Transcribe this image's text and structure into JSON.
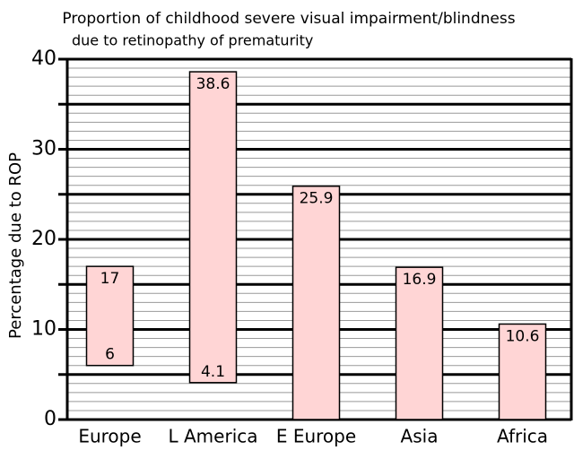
{
  "chart_data": {
    "type": "range-bar",
    "title": "Proportion of childhood severe visual impairment/blindness",
    "subtitle": "due to retinopathy of prematurity",
    "y_label": "Percentage due to ROP",
    "categories": [
      "Europe",
      "L America",
      "E Europe",
      "Asia",
      "Africa"
    ],
    "values": [
      17,
      38.6,
      25.9,
      16.9,
      10.6
    ],
    "low": [
      6,
      4.1,
      null,
      null,
      null
    ],
    "color": "#ffd5d5",
    "ylim": [
      0,
      40
    ],
    "yticks": [
      0,
      10,
      20,
      30,
      40
    ],
    "major_grid": [
      5,
      15,
      25,
      35
    ],
    "minor_grid": [
      1,
      2,
      3,
      4,
      6,
      7,
      8,
      9,
      11,
      12,
      13,
      14,
      16,
      17,
      18,
      19,
      21,
      22,
      23,
      24,
      26,
      27,
      28,
      29,
      31,
      32,
      33,
      34,
      36,
      37,
      38,
      39
    ]
  }
}
